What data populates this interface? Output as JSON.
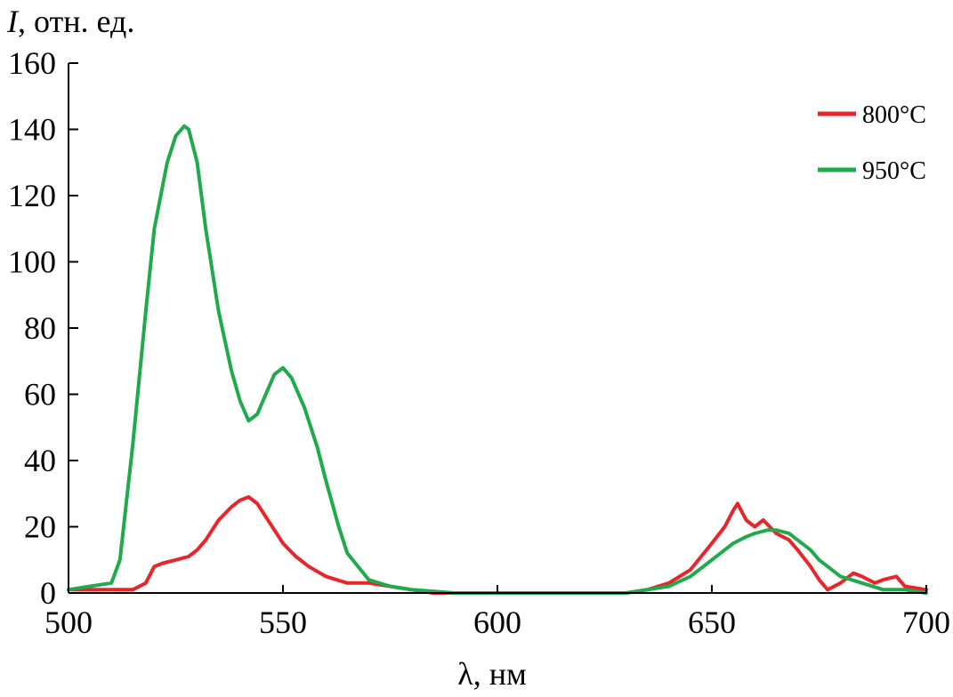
{
  "chart_data": {
    "type": "line",
    "xlabel": "λ, нм",
    "ylabel_italic": "I",
    "ylabel_rest": ", отн. ед.",
    "xlim": [
      500,
      700
    ],
    "ylim": [
      0,
      160
    ],
    "xticks": [
      500,
      550,
      600,
      650,
      700
    ],
    "yticks": [
      0,
      20,
      40,
      60,
      80,
      100,
      120,
      140,
      160
    ],
    "grid": false,
    "legend_position": "top-right",
    "series": [
      {
        "name": "800°C",
        "color": "#e8252b",
        "x": [
          500,
          505,
          510,
          515,
          518,
          520,
          522,
          525,
          528,
          530,
          532,
          535,
          538,
          540,
          542,
          544,
          546,
          548,
          550,
          553,
          556,
          560,
          565,
          570,
          575,
          580,
          585,
          590,
          600,
          610,
          620,
          630,
          635,
          640,
          645,
          650,
          653,
          655,
          656,
          658,
          660,
          662,
          665,
          668,
          670,
          673,
          675,
          677,
          680,
          683,
          685,
          688,
          690,
          693,
          695,
          700
        ],
        "y": [
          1,
          1,
          1,
          1,
          3,
          8,
          9,
          10,
          11,
          13,
          16,
          22,
          26,
          28,
          29,
          27,
          23,
          19,
          15,
          11,
          8,
          5,
          3,
          3,
          2,
          1,
          0,
          0,
          0,
          0,
          0,
          0,
          1,
          3,
          7,
          15,
          20,
          25,
          27,
          22,
          20,
          22,
          18,
          16,
          13,
          8,
          4,
          1,
          3,
          6,
          5,
          3,
          4,
          5,
          2,
          1
        ]
      },
      {
        "name": "950°C",
        "color": "#1faa4b",
        "x": [
          500,
          505,
          510,
          512,
          515,
          518,
          520,
          523,
          525,
          527,
          528,
          530,
          532,
          535,
          538,
          540,
          542,
          544,
          546,
          548,
          550,
          552,
          555,
          558,
          560,
          563,
          565,
          570,
          575,
          580,
          590,
          600,
          610,
          620,
          630,
          640,
          645,
          650,
          655,
          658,
          660,
          663,
          665,
          668,
          670,
          673,
          675,
          680,
          685,
          690,
          695,
          700
        ],
        "y": [
          1,
          2,
          3,
          10,
          45,
          85,
          110,
          130,
          138,
          141,
          140,
          130,
          110,
          85,
          67,
          58,
          52,
          54,
          60,
          66,
          68,
          65,
          56,
          44,
          34,
          20,
          12,
          4,
          2,
          1,
          0,
          0,
          0,
          0,
          0,
          2,
          5,
          10,
          15,
          17,
          18,
          19,
          19,
          18,
          16,
          13,
          10,
          5,
          3,
          1,
          1,
          0
        ]
      }
    ]
  }
}
